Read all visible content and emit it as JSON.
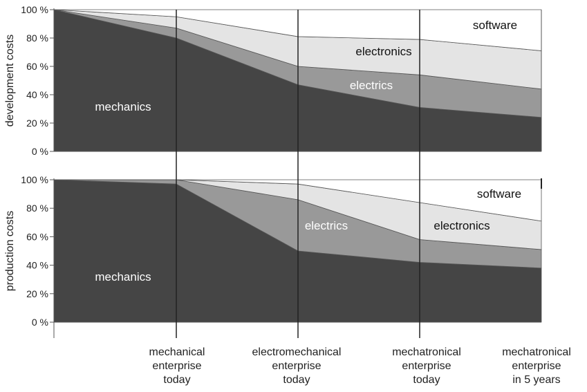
{
  "chart_data": {
    "type": "area",
    "stacked": true,
    "categories": [
      "",
      "mechanical\nenterprise\ntoday",
      "electromechanical\nenterprise\ntoday",
      "mechatronical\nenterprise\ntoday",
      "mechatronical\nenterprise\nin 5 years"
    ],
    "y_ticks": [
      "0 %",
      "20 %",
      "40 %",
      "60 %",
      "80 %",
      "100 %"
    ],
    "ylim": [
      0,
      100
    ],
    "colors": {
      "mechanics": "#454545",
      "electrics": "#999999",
      "electronics": "#e4e4e4",
      "software": "#ffffff"
    },
    "panels": [
      {
        "ylabel": "development costs",
        "series": [
          {
            "name": "mechanics",
            "values": [
              100,
              80,
              47,
              31,
              24
            ]
          },
          {
            "name": "electrics",
            "values": [
              0,
              7,
              13,
              23,
              20
            ]
          },
          {
            "name": "electronics",
            "values": [
              0,
              8,
              21,
              25,
              27
            ]
          },
          {
            "name": "software",
            "values": [
              0,
              5,
              19,
              21,
              29
            ]
          }
        ],
        "labels": {
          "mechanics": "mechanics",
          "electrics": "electrics",
          "electronics": "electronics",
          "software": "software"
        }
      },
      {
        "ylabel": "production costs",
        "series": [
          {
            "name": "mechanics",
            "values": [
              100,
              97,
              50,
              42,
              38
            ]
          },
          {
            "name": "electrics",
            "values": [
              0,
              3,
              36,
              16,
              13
            ]
          },
          {
            "name": "electronics",
            "values": [
              0,
              0,
              11,
              26,
              20
            ]
          },
          {
            "name": "software",
            "values": [
              0,
              0,
              3,
              16,
              29
            ]
          }
        ],
        "labels": {
          "mechanics": "mechanics",
          "electrics": "electrics",
          "electronics": "electronics",
          "software": "software"
        }
      }
    ]
  }
}
